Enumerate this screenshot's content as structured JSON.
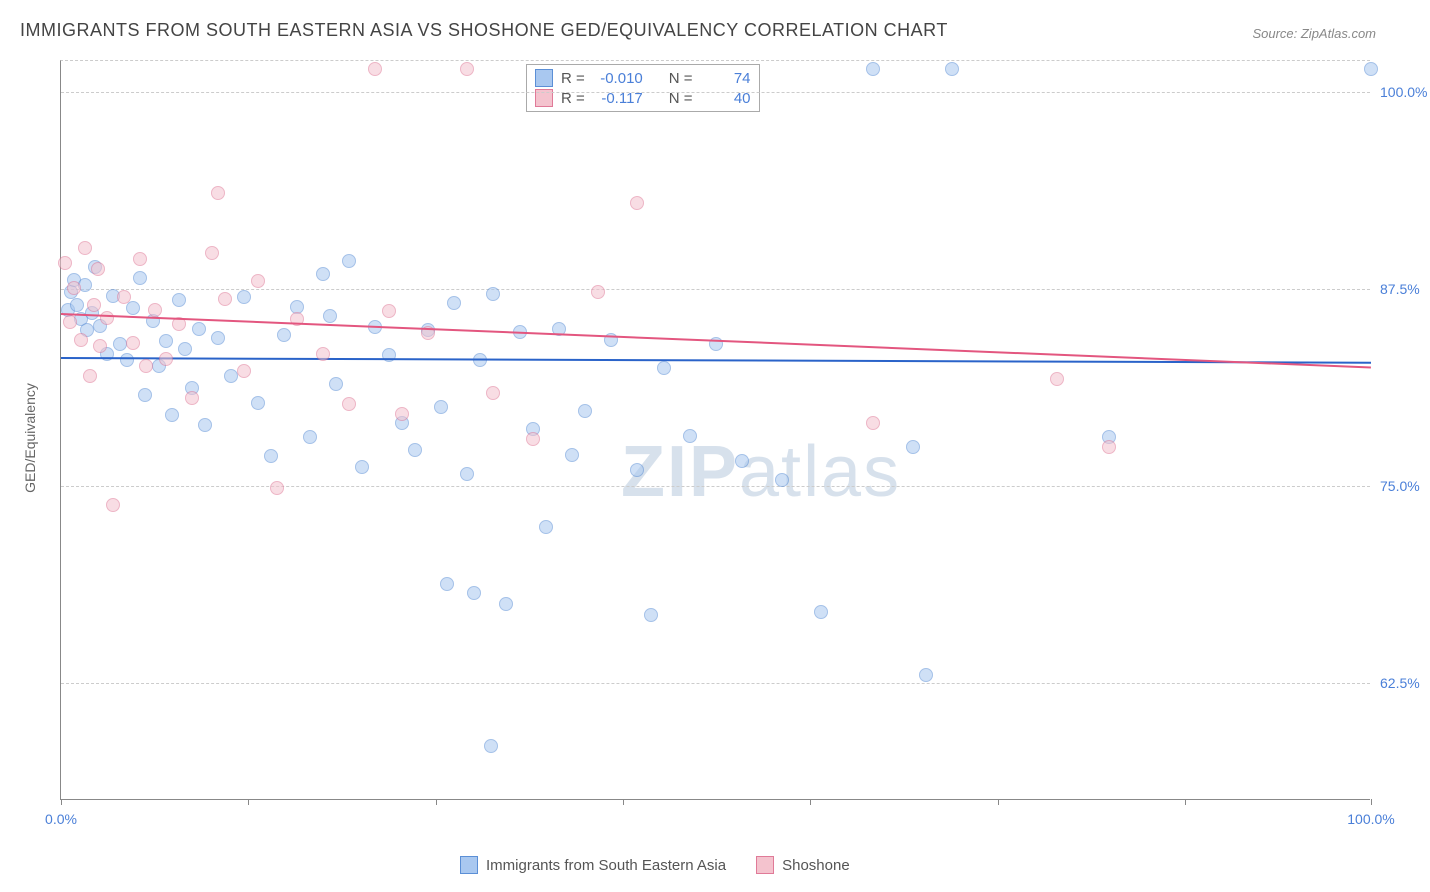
{
  "title": "IMMIGRANTS FROM SOUTH EASTERN ASIA VS SHOSHONE GED/EQUIVALENCY CORRELATION CHART",
  "source": "Source: ZipAtlas.com",
  "watermark": {
    "part1": "ZIP",
    "part2": "atlas"
  },
  "chart": {
    "type": "scatter",
    "xlim": [
      0,
      100
    ],
    "ylim": [
      55,
      102
    ],
    "x_label": "",
    "y_label": "GED/Equivalency",
    "x_ticks": [
      0,
      14.3,
      28.6,
      42.9,
      57.2,
      71.5,
      85.8,
      100
    ],
    "x_tick_labels": {
      "0": "0.0%",
      "100": "100.0%"
    },
    "y_ticks": [
      62.5,
      75.0,
      87.5,
      100.0
    ],
    "y_tick_labels": [
      "62.5%",
      "75.0%",
      "87.5%",
      "100.0%"
    ],
    "grid_color": "#cccccc",
    "background_color": "#ffffff",
    "marker_radius": 7,
    "marker_opacity": 0.55,
    "series": [
      {
        "name": "Immigrants from South Eastern Asia",
        "color_fill": "#a9c8f0",
        "color_stroke": "#5b8fd6",
        "r": "-0.010",
        "n": "74",
        "trend": {
          "x0": 0,
          "y0": 83.2,
          "x1": 100,
          "y1": 82.9,
          "color": "#2a63c9"
        },
        "points": [
          [
            0.5,
            86.2
          ],
          [
            0.8,
            87.3
          ],
          [
            1.0,
            88.1
          ],
          [
            1.2,
            86.5
          ],
          [
            1.5,
            85.6
          ],
          [
            1.8,
            87.8
          ],
          [
            2.0,
            84.9
          ],
          [
            2.4,
            86.0
          ],
          [
            2.6,
            88.9
          ],
          [
            3.0,
            85.2
          ],
          [
            3.5,
            83.4
          ],
          [
            4.0,
            87.1
          ],
          [
            4.5,
            84.0
          ],
          [
            5.0,
            83.0
          ],
          [
            5.5,
            86.3
          ],
          [
            6.0,
            88.2
          ],
          [
            6.4,
            80.8
          ],
          [
            7.0,
            85.5
          ],
          [
            7.5,
            82.6
          ],
          [
            8.0,
            84.2
          ],
          [
            8.5,
            79.5
          ],
          [
            9.0,
            86.8
          ],
          [
            9.5,
            83.7
          ],
          [
            10.0,
            81.2
          ],
          [
            10.5,
            85.0
          ],
          [
            11.0,
            78.9
          ],
          [
            12.0,
            84.4
          ],
          [
            13.0,
            82.0
          ],
          [
            14.0,
            87.0
          ],
          [
            15.0,
            80.3
          ],
          [
            16.0,
            76.9
          ],
          [
            17.0,
            84.6
          ],
          [
            18.0,
            86.4
          ],
          [
            19.0,
            78.1
          ],
          [
            20.0,
            88.5
          ],
          [
            20.5,
            85.8
          ],
          [
            21.0,
            81.5
          ],
          [
            22.0,
            89.3
          ],
          [
            23.0,
            76.2
          ],
          [
            24.0,
            85.1
          ],
          [
            25.0,
            83.3
          ],
          [
            26.0,
            79.0
          ],
          [
            27.0,
            77.3
          ],
          [
            28.0,
            84.9
          ],
          [
            29.0,
            80.0
          ],
          [
            29.5,
            68.8
          ],
          [
            30.0,
            86.6
          ],
          [
            31.0,
            75.8
          ],
          [
            31.5,
            68.2
          ],
          [
            32.0,
            83.0
          ],
          [
            32.8,
            58.5
          ],
          [
            33.0,
            87.2
          ],
          [
            34.0,
            67.5
          ],
          [
            35.0,
            84.8
          ],
          [
            36.0,
            78.6
          ],
          [
            37.0,
            72.4
          ],
          [
            38.0,
            85.0
          ],
          [
            39.0,
            77.0
          ],
          [
            40.0,
            79.8
          ],
          [
            42.0,
            84.3
          ],
          [
            44.0,
            76.0
          ],
          [
            45.0,
            66.8
          ],
          [
            46.0,
            82.5
          ],
          [
            48.0,
            78.2
          ],
          [
            50.0,
            84.0
          ],
          [
            52.0,
            76.6
          ],
          [
            55.0,
            75.4
          ],
          [
            58.0,
            67.0
          ],
          [
            62.0,
            101.5
          ],
          [
            65.0,
            77.5
          ],
          [
            66.0,
            63.0
          ],
          [
            68.0,
            101.5
          ],
          [
            80.0,
            78.1
          ],
          [
            100.0,
            101.5
          ]
        ]
      },
      {
        "name": "Shoshone",
        "color_fill": "#f4c3ce",
        "color_stroke": "#e07a98",
        "r": "-0.117",
        "n": "40",
        "trend": {
          "x0": 0,
          "y0": 86.0,
          "x1": 100,
          "y1": 82.6,
          "color": "#e3567f"
        },
        "points": [
          [
            0.3,
            89.2
          ],
          [
            0.7,
            85.4
          ],
          [
            1.0,
            87.6
          ],
          [
            1.5,
            84.3
          ],
          [
            1.8,
            90.1
          ],
          [
            2.2,
            82.0
          ],
          [
            2.5,
            86.5
          ],
          [
            2.8,
            88.8
          ],
          [
            3.0,
            83.9
          ],
          [
            3.5,
            85.7
          ],
          [
            4.0,
            73.8
          ],
          [
            4.8,
            87.0
          ],
          [
            5.5,
            84.1
          ],
          [
            6.0,
            89.4
          ],
          [
            6.5,
            82.6
          ],
          [
            7.2,
            86.2
          ],
          [
            8.0,
            83.1
          ],
          [
            9.0,
            85.3
          ],
          [
            10.0,
            80.6
          ],
          [
            11.5,
            89.8
          ],
          [
            12.0,
            93.6
          ],
          [
            12.5,
            86.9
          ],
          [
            14.0,
            82.3
          ],
          [
            15.0,
            88.0
          ],
          [
            16.5,
            74.9
          ],
          [
            18.0,
            85.6
          ],
          [
            20.0,
            83.4
          ],
          [
            22.0,
            80.2
          ],
          [
            24.0,
            101.5
          ],
          [
            25.0,
            86.1
          ],
          [
            26.0,
            79.6
          ],
          [
            28.0,
            84.7
          ],
          [
            31.0,
            101.5
          ],
          [
            33.0,
            80.9
          ],
          [
            36.0,
            78.0
          ],
          [
            41.0,
            87.3
          ],
          [
            44.0,
            93.0
          ],
          [
            62.0,
            79.0
          ],
          [
            76.0,
            81.8
          ],
          [
            80.0,
            77.5
          ]
        ]
      }
    ]
  },
  "legend": {
    "series1_label": "Immigrants from South Eastern Asia",
    "series2_label": "Shoshone"
  },
  "stats_legend": {
    "r_label": "R =",
    "n_label": "N ="
  }
}
